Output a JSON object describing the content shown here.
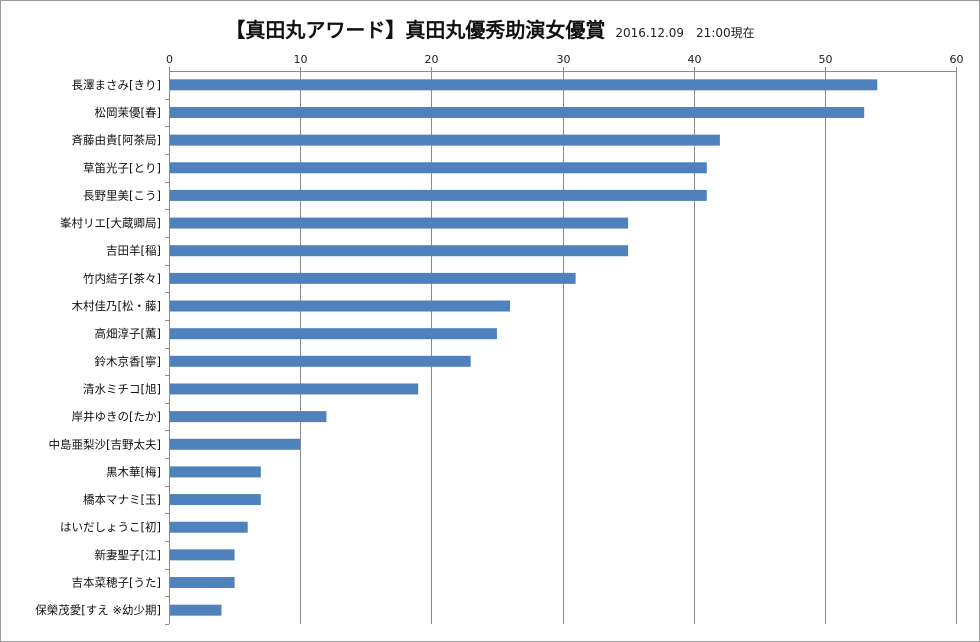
{
  "chart_data": {
    "type": "bar",
    "orientation": "horizontal",
    "title": "【真田丸アワード】真田丸優秀助演女優賞",
    "subtitle": "2016.12.09　21:00現在",
    "xlim": [
      0,
      60
    ],
    "ticks": [
      0,
      10,
      20,
      30,
      40,
      50,
      60
    ],
    "axis_position": "top",
    "grid": true,
    "bar_color": "#4f81bd",
    "categories": [
      "長澤まさみ[きり]",
      "松岡茉優[春]",
      "斉藤由貴[阿茶局]",
      "草笛光子[とり]",
      "長野里美[こう]",
      "峯村リエ[大蔵卿局]",
      "吉田羊[稲]",
      "竹内結子[茶々]",
      "木村佳乃[松・藤]",
      "高畑淳子[薫]",
      "鈴木京香[寧]",
      "清水ミチコ[旭]",
      "岸井ゆきの[たか]",
      "中島亜梨沙[吉野太夫]",
      "黒木華[梅]",
      "橋本マナミ[玉]",
      "はいだしょうこ[初]",
      "新妻聖子[江]",
      "吉本菜穂子[うた]",
      "保榮茂愛[すえ ※幼少期]"
    ],
    "values": [
      54,
      53,
      42,
      41,
      41,
      35,
      35,
      31,
      26,
      25,
      23,
      19,
      12,
      10,
      7,
      7,
      6,
      5,
      5,
      4
    ]
  }
}
